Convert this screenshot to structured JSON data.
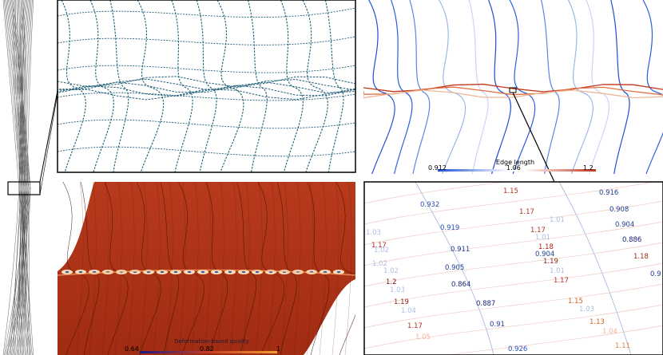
{
  "edge_length_legend": {
    "title": "Edge length",
    "min_label": "0.912",
    "mid_label": "1.06",
    "max_label": "1.2",
    "color_low": "#1d4fd8",
    "color_mid": "#ffffff",
    "color_high": "#c0361a"
  },
  "quality_legend": {
    "title": "Deformation-based quality",
    "min_label": "0.64",
    "mid_label": "0.82",
    "max_label": "1",
    "color_low": "#1a1a80",
    "color_high": "#f0a030"
  },
  "zoom_labels": [
    {
      "text": "1.15",
      "color": "#b4321e"
    },
    {
      "text": "0.916",
      "color": "#1e3c96"
    },
    {
      "text": "0.932",
      "color": "#2850b4"
    },
    {
      "text": "1.17",
      "color": "#b4321e"
    },
    {
      "text": "0.908",
      "color": "#1e3c96"
    },
    {
      "text": "1.01",
      "color": "#aabee6"
    },
    {
      "text": "0.904",
      "color": "#1e3c96"
    },
    {
      "text": "1.03",
      "color": "#aabee6"
    },
    {
      "text": "0.919",
      "color": "#2850b4"
    },
    {
      "text": "1.17",
      "color": "#b4321e"
    },
    {
      "text": "1.01",
      "color": "#aabee6"
    },
    {
      "text": "0.886",
      "color": "#141e78"
    },
    {
      "text": "1.17",
      "color": "#b4321e"
    },
    {
      "text": "1.02",
      "color": "#aabee6"
    },
    {
      "text": "0.911",
      "color": "#1e3c96"
    },
    {
      "text": "1.18",
      "color": "#a02814"
    },
    {
      "text": "1.02",
      "color": "#aabee6"
    },
    {
      "text": "0.904",
      "color": "#1e3c96"
    },
    {
      "text": "1.18",
      "color": "#a02814"
    },
    {
      "text": "0.905",
      "color": "#1e3c96"
    },
    {
      "text": "1.19",
      "color": "#8c1e0a"
    },
    {
      "text": "0.9",
      "color": "#1e3c96"
    },
    {
      "text": "1.01",
      "color": "#aabee6"
    },
    {
      "text": "1.2",
      "color": "#781400"
    },
    {
      "text": "0.864",
      "color": "#141e78"
    },
    {
      "text": "1.17",
      "color": "#b4321e"
    },
    {
      "text": "1.03",
      "color": "#aabee6"
    },
    {
      "text": "1.02",
      "color": "#aabee6"
    },
    {
      "text": "1.19",
      "color": "#8c1e0a"
    },
    {
      "text": "0.887",
      "color": "#141e78"
    },
    {
      "text": "1.15",
      "color": "#d2641e"
    },
    {
      "text": "1.04",
      "color": "#aabee6"
    },
    {
      "text": "1.03",
      "color": "#aabee6"
    },
    {
      "text": "1.17",
      "color": "#b4321e"
    },
    {
      "text": "0.91",
      "color": "#1e3c96"
    },
    {
      "text": "1.13",
      "color": "#d2641e"
    },
    {
      "text": "1.05",
      "color": "#f0b496"
    },
    {
      "text": "1.04",
      "color": "#f0b496"
    },
    {
      "text": "0.926",
      "color": "#2850b4"
    },
    {
      "text": "1.11",
      "color": "#e6823c"
    }
  ]
}
